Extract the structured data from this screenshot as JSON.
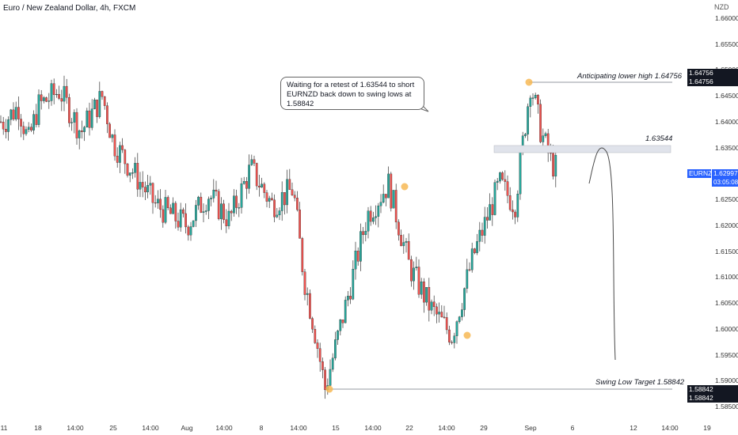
{
  "header": {
    "title": "Euro / New Zealand Dollar, 4h, FXCM",
    "currency": "NZD"
  },
  "price_axis": {
    "ticks": [
      "1.66000",
      "1.65500",
      "1.65000",
      "1.64500",
      "1.64000",
      "1.63500",
      "1.63000",
      "1.62500",
      "1.62000",
      "1.61500",
      "1.61000",
      "1.60500",
      "1.60000",
      "1.59500",
      "1.59000",
      "1.58500"
    ],
    "labels": {
      "high_a": "1.64756",
      "high_b": "1.64756",
      "symbol": "EURNZD",
      "last": "1.62997",
      "countdown": "03:05:08",
      "low_a": "1.58842",
      "low_b": "1.58842"
    }
  },
  "time_axis": {
    "ticks": [
      "11",
      "18",
      "14:00",
      "25",
      "14:00",
      "Aug",
      "14:00",
      "8",
      "14:00",
      "15",
      "14:00",
      "22",
      "14:00",
      "29",
      "Sep",
      "6",
      "12",
      "14:00",
      "19"
    ]
  },
  "annotations": {
    "callout": "Waiting for a retest of 1.63544 to short EURNZD back down to swing lows at 1.58842",
    "lower_high": "Anticipating lower high 1.64756",
    "resistance": "1.63544",
    "swing_low": "Swing Low Target 1.58842"
  },
  "colors": {
    "up": "#26a69a",
    "down": "#ef5350",
    "zone": "#e0e3eb",
    "accent": "#f7b955"
  },
  "chart_data": {
    "type": "candlestick",
    "title": "Euro / New Zealand Dollar, 4h, FXCM",
    "symbol": "EURNZD",
    "ylabel": "NZD",
    "ylim": [
      1.585,
      1.662
    ],
    "last_price": 1.62997,
    "levels": {
      "lower_high_target": 1.64756,
      "retest_level": 1.63544,
      "swing_low_target": 1.58842
    },
    "swing_points": [
      {
        "label": "swing high",
        "x": "Sep 1",
        "y": 1.64756
      },
      {
        "label": "swing high",
        "x": "Aug 20",
        "y": 1.628
      },
      {
        "label": "swing low",
        "x": "Aug 14",
        "y": 1.5884
      },
      {
        "label": "swing low",
        "x": "Aug 26",
        "y": 1.5987
      }
    ],
    "projection_path": [
      {
        "x": "Sep 4",
        "y": 1.6285
      },
      {
        "x": "Sep 6",
        "y": 1.6345
      },
      {
        "x": "Sep 10",
        "y": 1.5935
      }
    ],
    "path": [
      {
        "x": "Jul 11",
        "y": 1.64
      },
      {
        "x": "Jul 14",
        "y": 1.643
      },
      {
        "x": "Jul 16",
        "y": 1.636
      },
      {
        "x": "Jul 18",
        "y": 1.643
      },
      {
        "x": "Jul 20",
        "y": 1.646
      },
      {
        "x": "Jul 22",
        "y": 1.638
      },
      {
        "x": "Jul 24",
        "y": 1.645
      },
      {
        "x": "Jul 25",
        "y": 1.636
      },
      {
        "x": "Jul 27",
        "y": 1.63
      },
      {
        "x": "Jul 29",
        "y": 1.624
      },
      {
        "x": "Aug 1",
        "y": 1.62
      },
      {
        "x": "Aug 3",
        "y": 1.626
      },
      {
        "x": "Aug 5",
        "y": 1.621
      },
      {
        "x": "Aug 7",
        "y": 1.631
      },
      {
        "x": "Aug 9",
        "y": 1.624
      },
      {
        "x": "Aug 11",
        "y": 1.627
      },
      {
        "x": "Aug 12",
        "y": 1.61
      },
      {
        "x": "Aug 13",
        "y": 1.6
      },
      {
        "x": "Aug 14",
        "y": 1.5884
      },
      {
        "x": "Aug 16",
        "y": 1.605
      },
      {
        "x": "Aug 18",
        "y": 1.622
      },
      {
        "x": "Aug 20",
        "y": 1.628
      },
      {
        "x": "Aug 22",
        "y": 1.612
      },
      {
        "x": "Aug 24",
        "y": 1.604
      },
      {
        "x": "Aug 26",
        "y": 1.5987
      },
      {
        "x": "Aug 28",
        "y": 1.614
      },
      {
        "x": "Aug 30",
        "y": 1.628
      },
      {
        "x": "Aug 31",
        "y": 1.624
      },
      {
        "x": "Sep 1",
        "y": 1.64756
      },
      {
        "x": "Sep 2",
        "y": 1.638
      },
      {
        "x": "Sep 3",
        "y": 1.632
      },
      {
        "x": "Sep 4",
        "y": 1.62997
      }
    ]
  }
}
